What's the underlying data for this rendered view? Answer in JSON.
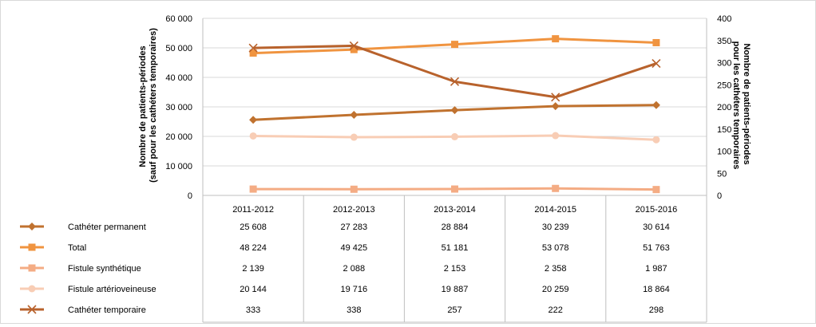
{
  "chart_data": {
    "type": "line",
    "categories": [
      "2011-2012",
      "2012-2013",
      "2013-2014",
      "2014-2015",
      "2015-2016"
    ],
    "y_left": {
      "label_line1": "Nombre de patients-périodes",
      "label_line2": "(sauf pour les cathéters temporaires)",
      "range": [
        0,
        60000
      ],
      "ticks": [
        "0",
        "10 000",
        "20 000",
        "30 000",
        "40 000",
        "50 000",
        "60 000"
      ]
    },
    "y_right": {
      "label_line1": "Nombre de patients-périodes",
      "label_line2": "pour les cathéters temporaires",
      "range": [
        0,
        400
      ],
      "ticks": [
        "0",
        "50",
        "100",
        "150",
        "200",
        "250",
        "300",
        "350",
        "400"
      ]
    },
    "grid": "horizontal",
    "legend": "data-table",
    "series": [
      {
        "name": "Cathéter permanent",
        "axis": "left",
        "marker": "diamond",
        "color": "#C0722F",
        "values": [
          25608,
          27283,
          28884,
          30239,
          30614
        ],
        "labels": [
          "25 608",
          "27 283",
          "28 884",
          "30 239",
          "30 614"
        ]
      },
      {
        "name": "Total",
        "axis": "left",
        "marker": "square",
        "color": "#F09440",
        "values": [
          48224,
          49425,
          51181,
          53078,
          51763
        ],
        "labels": [
          "48 224",
          "49 425",
          "51 181",
          "53 078",
          "51 763"
        ]
      },
      {
        "name": "Fistule synthétique",
        "axis": "left",
        "marker": "square",
        "color": "#F4AC84",
        "values": [
          2139,
          2088,
          2153,
          2358,
          1987
        ],
        "labels": [
          "2 139",
          "2 088",
          "2 153",
          "2 358",
          "1 987"
        ]
      },
      {
        "name": "Fistule artérioveineuse",
        "axis": "left",
        "marker": "circle",
        "color": "#F8CDB5",
        "values": [
          20144,
          19716,
          19887,
          20259,
          18864
        ],
        "labels": [
          "20 144",
          "19 716",
          "19 887",
          "20 259",
          "18 864"
        ]
      },
      {
        "name": "Cathéter temporaire",
        "axis": "right",
        "marker": "x",
        "color": "#B8622C",
        "values": [
          333,
          338,
          257,
          222,
          298
        ],
        "labels": [
          "333",
          "338",
          "257",
          "222",
          "298"
        ]
      }
    ]
  }
}
